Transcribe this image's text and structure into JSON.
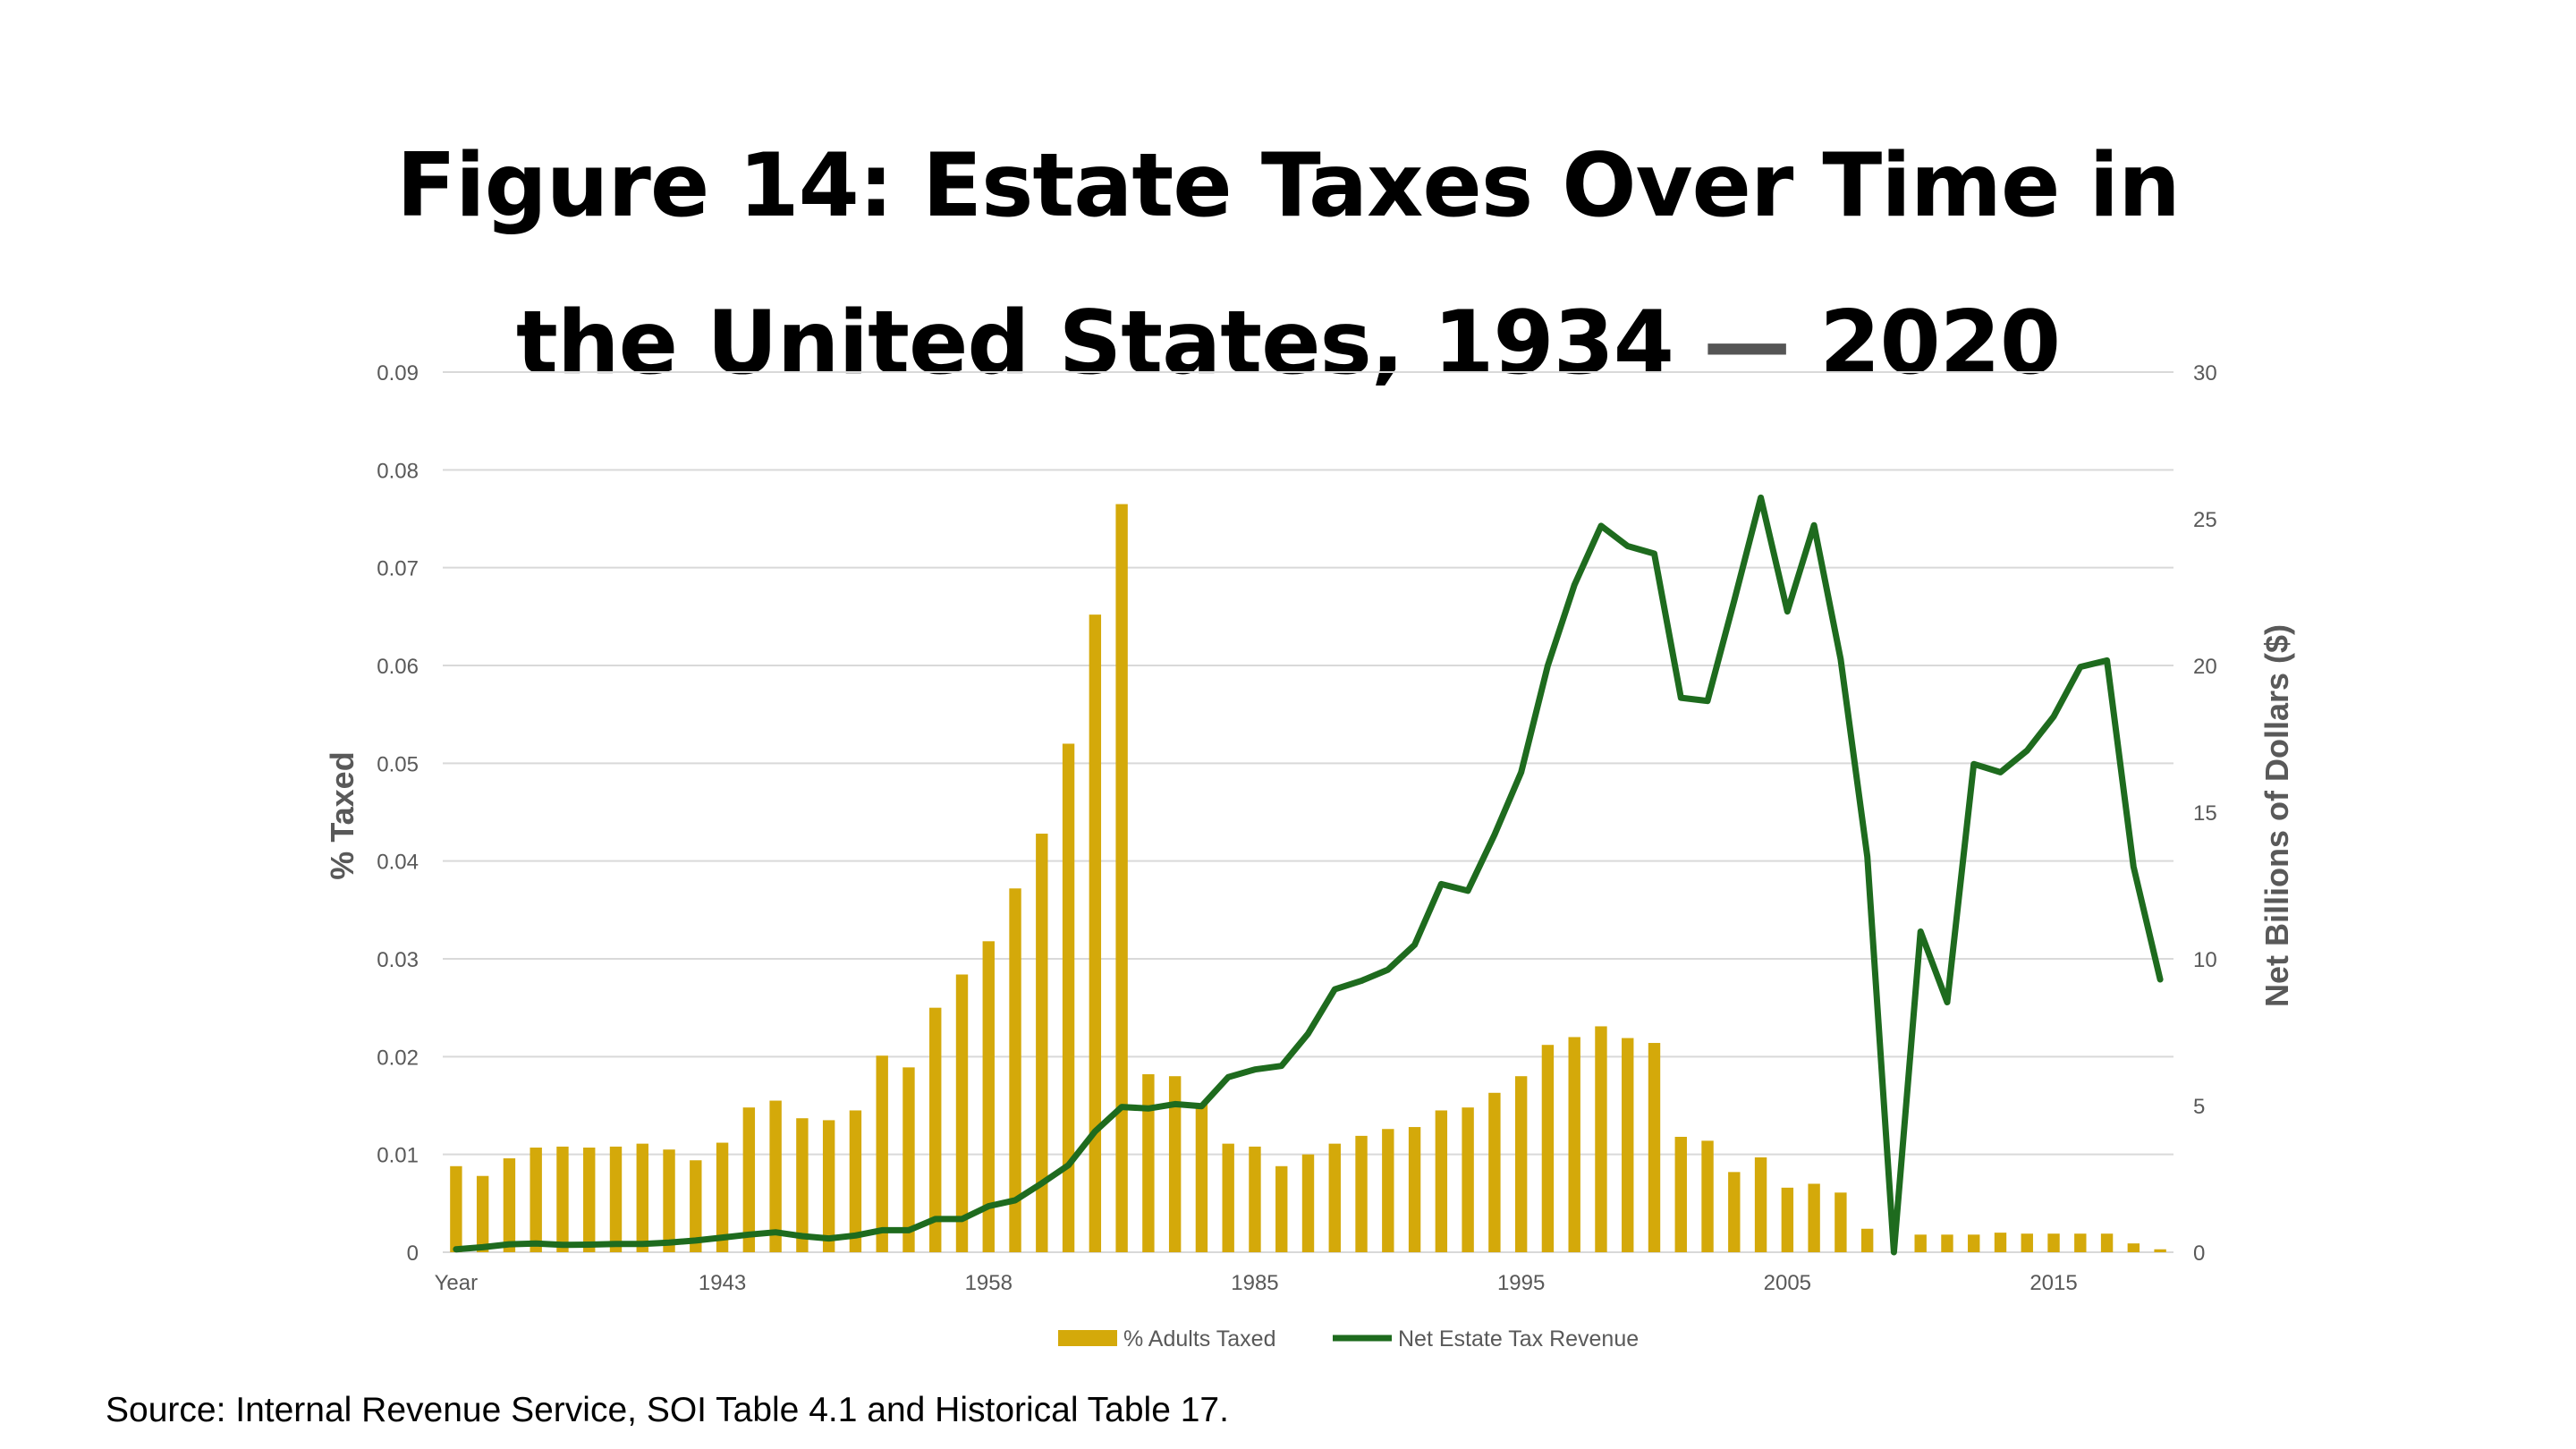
{
  "title": {
    "line1": "Figure 14: Estate Taxes Over Time in",
    "line2_pre": "the United States, 1934",
    "line2_dash": "—",
    "line2_post": "2020"
  },
  "source": "Source: Internal Revenue Service, SOI Table 4.1 and Historical Table 17.",
  "colors": {
    "bar": "#d4a90a",
    "line": "#1e6b1e",
    "grid": "#d9d9d9",
    "axis_text": "#595959"
  },
  "chart_data": {
    "type": "bar+line",
    "title": "Figure 14: Estate Taxes Over Time in the United States, 1934 — 2020",
    "ylabel": "% Taxed",
    "y2label": "Net Billions of Dollars ($)",
    "ylim": [
      0,
      0.09
    ],
    "y2lim": [
      0,
      30
    ],
    "y_ticks": [
      "0",
      "0.01",
      "0.02",
      "0.03",
      "0.04",
      "0.05",
      "0.06",
      "0.07",
      "0.08",
      "0.09"
    ],
    "y2_ticks": [
      "0",
      "5",
      "10",
      "15",
      "20",
      "25",
      "30"
    ],
    "x_ticks": [
      {
        "index": 0,
        "label": "Year"
      },
      {
        "index": 10,
        "label": "1943"
      },
      {
        "index": 20,
        "label": "1958"
      },
      {
        "index": 30,
        "label": "1985"
      },
      {
        "index": 40,
        "label": "1995"
      },
      {
        "index": 50,
        "label": "2005"
      },
      {
        "index": 60,
        "label": "2015"
      }
    ],
    "grid": true,
    "legend_position": "bottom",
    "series": [
      {
        "name": "% Adults Taxed",
        "type": "bar",
        "axis": "left",
        "values": [
          0.0088,
          0.0078,
          0.0096,
          0.0107,
          0.0108,
          0.0107,
          0.0108,
          0.0111,
          0.0105,
          0.0094,
          0.0112,
          0.0148,
          0.0155,
          0.0137,
          0.0135,
          0.0145,
          0.0201,
          0.0189,
          0.025,
          0.0284,
          0.0318,
          0.0372,
          0.0428,
          0.052,
          0.0652,
          0.0765,
          0.0182,
          0.018,
          0.0152,
          0.0111,
          0.0108,
          0.0088,
          0.01,
          0.0111,
          0.0119,
          0.0126,
          0.0128,
          0.0145,
          0.0148,
          0.0163,
          0.018,
          0.0212,
          0.022,
          0.0231,
          0.0219,
          0.0214,
          0.0118,
          0.0114,
          0.0082,
          0.0097,
          0.0066,
          0.007,
          0.0061,
          0.0024,
          0.0,
          0.0018,
          0.0018,
          0.0018,
          0.002,
          0.0019,
          0.0019,
          0.0019,
          0.0019,
          0.0009,
          0.0003
        ]
      },
      {
        "name": "Net Estate Tax Revenue",
        "type": "line",
        "axis": "right",
        "values": [
          0.1,
          0.17,
          0.27,
          0.3,
          0.25,
          0.26,
          0.28,
          0.28,
          0.33,
          0.4,
          0.5,
          0.6,
          0.68,
          0.55,
          0.47,
          0.57,
          0.75,
          0.75,
          1.13,
          1.13,
          1.57,
          1.77,
          2.35,
          2.97,
          4.12,
          4.95,
          4.9,
          5.05,
          4.98,
          5.97,
          6.23,
          6.35,
          7.45,
          8.96,
          9.25,
          9.63,
          10.48,
          12.55,
          12.32,
          14.23,
          16.36,
          19.99,
          22.74,
          24.76,
          24.07,
          23.81,
          18.9,
          18.79,
          22.2,
          25.72,
          21.84,
          24.78,
          20.21,
          13.48,
          0.0,
          10.93,
          8.52,
          16.64,
          16.36,
          17.1,
          18.26,
          19.95,
          20.17,
          13.14,
          9.3
        ]
      }
    ]
  }
}
